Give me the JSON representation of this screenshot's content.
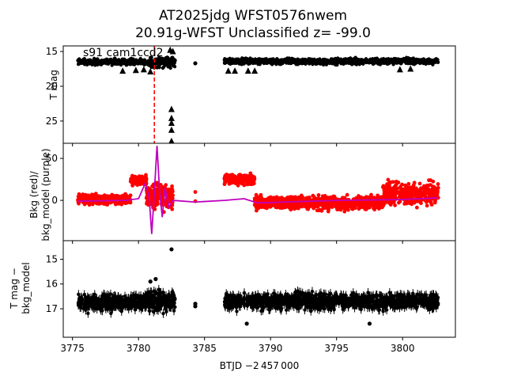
{
  "title_line1": "AT2025jdg  WFST0576nwem",
  "title_line2": "20.91g-WFST Unclassified z= -99.0",
  "xlabel": "BTJD −2 457 000",
  "panels": {
    "top": {
      "ylabel": "T mag",
      "annotation": "s91 cam1ccd2"
    },
    "middle": {
      "ylabel_line1": "Bkg (red)/",
      "ylabel_line2": "bkg_model (purple)"
    },
    "bottom": {
      "ylabel_line1": "T mag −",
      "ylabel_line2": "bkg_model"
    }
  },
  "colors": {
    "data": "#000000",
    "bkg": "#ff0000",
    "bkg_model": "#bf00bf",
    "marker_line": "#ff0000"
  },
  "chart_data": [
    {
      "type": "scatter",
      "panel": "top",
      "ylabel": "T mag",
      "xlim": [
        3774.3,
        3804.0
      ],
      "ylim": [
        28.2,
        14.2
      ],
      "y_inverted": true,
      "x_ticks": [
        3775,
        3780,
        3785,
        3790,
        3795,
        3800
      ],
      "y_ticks": [
        15,
        20,
        25
      ],
      "x_tick_labels_shown": false,
      "annotation": "s91 cam1ccd2",
      "vertical_marker_x": 3781.2,
      "series": [
        {
          "segments": [
            {
              "x": [
                3775.4,
                3780.6
              ],
              "y_center": 16.5,
              "spread": 0.6
            },
            {
              "x": [
                3780.6,
                3782.8
              ],
              "y_center": 16.6,
              "spread": 1.0
            },
            {
              "x": [
                3786.5,
                3802.7
              ],
              "y_center": 16.4,
              "spread": 0.6
            }
          ],
          "points": [
            [
              3784.3,
              16.7
            ]
          ]
        },
        {
          "marker": "triangle",
          "points": [
            [
              3778.8,
              17.8
            ],
            [
              3779.8,
              17.7
            ],
            [
              3780.4,
              17.6
            ],
            [
              3780.9,
              17.9
            ],
            [
              3782.5,
              23.3
            ],
            [
              3782.5,
              24.6
            ],
            [
              3782.5,
              25.3
            ],
            [
              3782.5,
              26.3
            ],
            [
              3782.5,
              27.9
            ],
            [
              3782.4,
              14.8
            ],
            [
              3782.6,
              15.0
            ],
            [
              3786.8,
              17.8
            ],
            [
              3787.3,
              17.8
            ],
            [
              3788.3,
              17.8
            ],
            [
              3788.8,
              17.8
            ],
            [
              3799.8,
              17.6
            ],
            [
              3800.6,
              17.5
            ]
          ]
        }
      ]
    },
    {
      "type": "line",
      "panel": "middle",
      "xlim": [
        3774.3,
        3804.0
      ],
      "ylim": [
        -48,
        68
      ],
      "y_ticks": [
        0,
        50
      ],
      "x_tick_labels_shown": false,
      "series": [
        {
          "name": "Bkg",
          "color": "#ff0000",
          "segments": [
            {
              "x": [
                3775.4,
                3779.4
              ],
              "base": 1,
              "spread": 8
            },
            {
              "x": [
                3779.4,
                3780.6
              ],
              "base": 24,
              "spread": 8
            },
            {
              "x": [
                3780.6,
                3782.6
              ],
              "base": 5,
              "spread": 22
            },
            {
              "x": [
                3786.5,
                3788.8
              ],
              "base": 25,
              "spread": 9
            },
            {
              "x": [
                3788.8,
                3798.5
              ],
              "base": -3,
              "spread": 11
            },
            {
              "x": [
                3798.5,
                3802.7
              ],
              "base": 8,
              "spread": 20
            }
          ],
          "points": [
            [
              3784.3,
              10
            ],
            [
              3784.3,
              -1
            ]
          ]
        },
        {
          "name": "bkg_model",
          "color": "#bf00bf",
          "points": [
            [
              3775.4,
              -1
            ],
            [
              3779.0,
              0
            ],
            [
              3780.0,
              2
            ],
            [
              3780.5,
              20
            ],
            [
              3780.8,
              5
            ],
            [
              3781.0,
              -40
            ],
            [
              3781.2,
              10
            ],
            [
              3781.4,
              65
            ],
            [
              3781.6,
              10
            ],
            [
              3781.8,
              -20
            ],
            [
              3782.0,
              15
            ],
            [
              3782.3,
              -8
            ],
            [
              3782.6,
              0
            ],
            [
              3784.3,
              -2
            ],
            [
              3786.5,
              0
            ],
            [
              3788.0,
              2
            ],
            [
              3789.0,
              -3
            ],
            [
              3795.0,
              0
            ],
            [
              3800.0,
              1
            ],
            [
              3802.7,
              3
            ]
          ]
        }
      ]
    },
    {
      "type": "scatter",
      "panel": "bottom",
      "xlabel": "BTJD −2 457 000",
      "xlim": [
        3774.3,
        3804.0
      ],
      "ylim": [
        18.15,
        14.25
      ],
      "y_inverted": true,
      "x_ticks": [
        3775,
        3780,
        3785,
        3790,
        3795,
        3800
      ],
      "x_tick_labels": [
        "3775",
        "3780",
        "3785",
        "3790",
        "3795",
        "3800"
      ],
      "y_ticks": [
        15,
        16,
        17
      ],
      "series": [
        {
          "segments": [
            {
              "x": [
                3775.4,
                3780.6
              ],
              "y_center": 16.75,
              "spread": 0.45
            },
            {
              "x": [
                3780.6,
                3782.8
              ],
              "y_center": 16.7,
              "spread": 0.6
            },
            {
              "x": [
                3786.5,
                3802.7
              ],
              "y_center": 16.7,
              "spread": 0.45
            }
          ],
          "points": [
            [
              3782.5,
              14.6
            ],
            [
              3784.3,
              16.8
            ],
            [
              3784.3,
              16.9
            ],
            [
              3781.3,
              15.8
            ],
            [
              3780.9,
              15.9
            ],
            [
              3788.2,
              17.6
            ],
            [
              3797.5,
              17.6
            ]
          ]
        }
      ]
    }
  ]
}
